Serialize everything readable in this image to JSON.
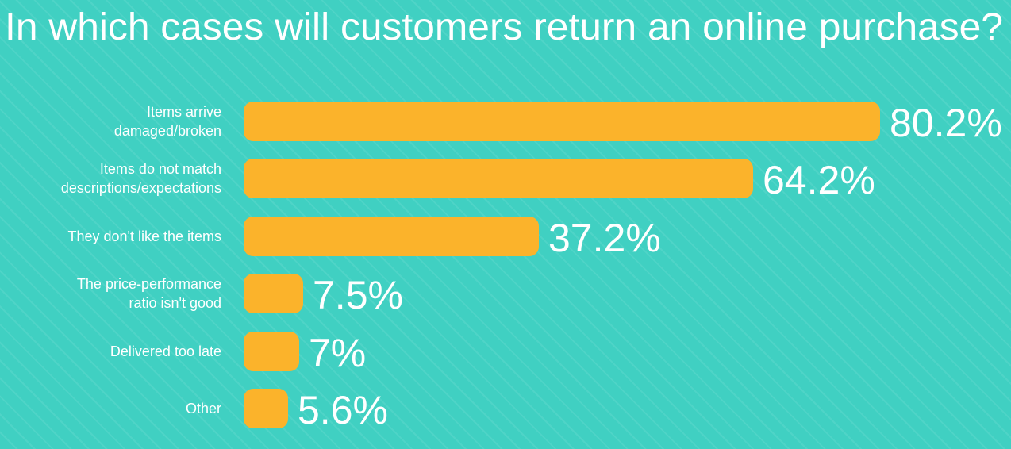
{
  "chart_data": {
    "type": "bar",
    "orientation": "horizontal",
    "title": "In which cases will customers return an online purchase?",
    "categories": [
      "Items arrive\ndamaged/broken",
      "Items do not match\ndescriptions/expectations",
      "They don't like the items",
      "The price-performance\nratio isn't good",
      "Delivered too late",
      "Other"
    ],
    "values": [
      80.2,
      64.2,
      37.2,
      7.5,
      7,
      5.6
    ],
    "value_labels": [
      "80.2%",
      "64.2%",
      "37.2%",
      "7.5%",
      "7%",
      "5.6%"
    ],
    "color": "#fbb32b"
  }
}
